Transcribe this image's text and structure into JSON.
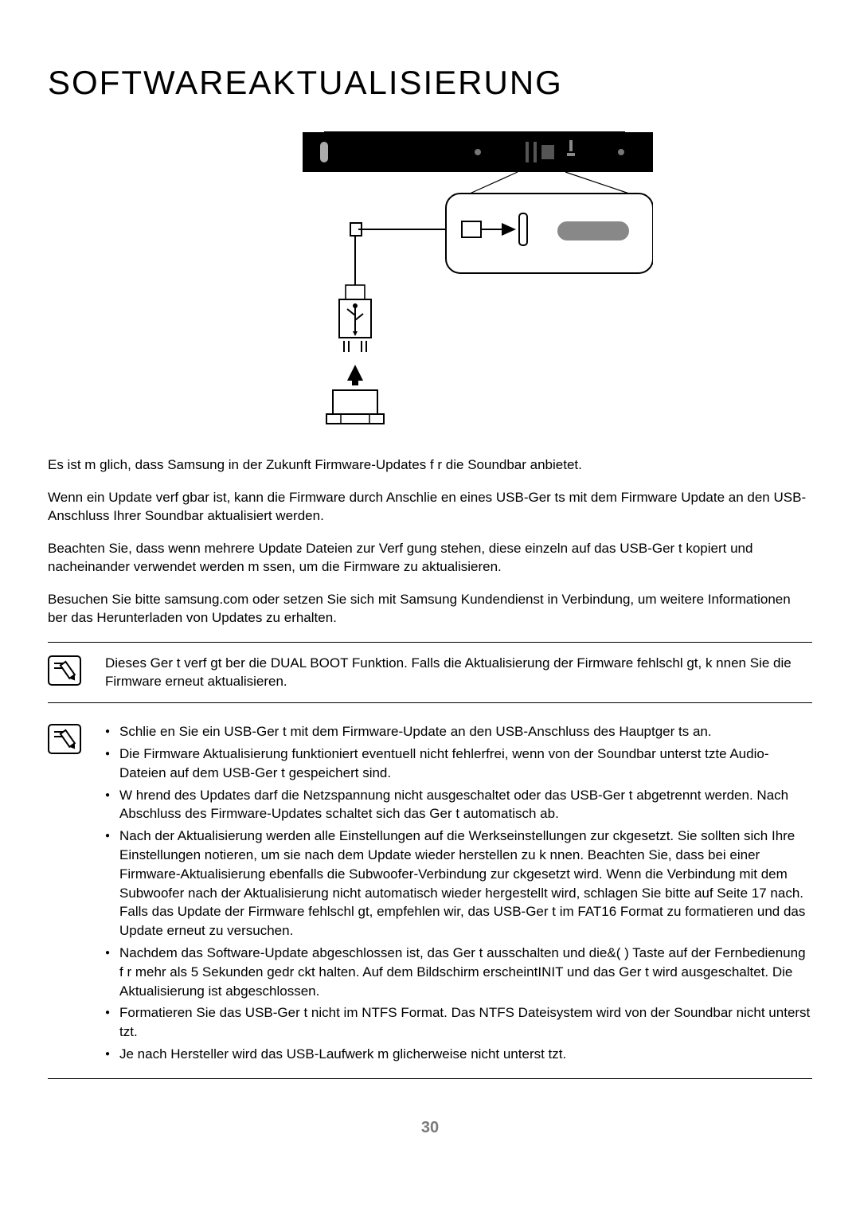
{
  "title": "SOFTWAREAKTUALISIERUNG",
  "paragraphs": {
    "p1": "Es ist m glich, dass Samsung in der Zukunft Firmware-Updates f r die Soundbar anbietet.",
    "p2": "Wenn ein Update verf gbar ist, kann die Firmware durch Anschlie en eines USB-Ger ts mit dem Firmware Update an den USB-Anschluss Ihrer Soundbar aktualisiert werden.",
    "p3": "Beachten Sie, dass wenn mehrere Update Dateien zur Verf gung stehen, diese einzeln auf das USB-Ger t kopiert und nacheinander verwendet werden m ssen, um die Firmware zu aktualisieren.",
    "p4": "Besuchen Sie bitte samsung.com oder setzen Sie sich mit Samsung Kundendienst in Verbindung, um weitere Informationen  ber das Herunterladen von Updates zu erhalten."
  },
  "note1": {
    "text": "Dieses Ger t verf gt  ber die DUAL BOOT Funktion. Falls die Aktualisierung der Firmware fehlschl gt, k nnen Sie die Firmware erneut aktualisieren."
  },
  "note2": {
    "items": [
      "Schlie en Sie ein USB-Ger t mit dem Firmware-Update an den USB-Anschluss des Hauptger ts an.",
      "Die Firmware Aktualisierung funktioniert eventuell nicht fehlerfrei, wenn von der Soundbar unterst tzte Audio-Dateien auf dem USB-Ger t gespeichert sind.",
      "W hrend des Updates darf die Netzspannung nicht ausgeschaltet oder das USB-Ger t abgetrennt werden. Nach Abschluss des Firmware-Updates schaltet sich das Ger t automatisch ab.",
      "Nach der Aktualisierung werden alle Einstellungen auf die Werkseinstellungen zur ckgesetzt. Sie sollten sich Ihre Einstellungen notieren, um sie nach dem Update wieder herstellen zu k nnen. Beachten Sie, dass bei einer Firmware-Aktualisierung ebenfalls die Subwoofer-Verbindung zur ckgesetzt wird. Wenn die Verbindung mit dem Subwoofer nach der Aktualisierung nicht automatisch wieder hergestellt wird, schlagen Sie bitte auf Seite 17 nach. Falls das Update der Firmware fehlschl gt, empfehlen wir, das USB-Ger t im FAT16 Format zu formatieren und das Update erneut zu versuchen.",
      "Nachdem das Software-Update abgeschlossen ist, das Ger t ausschalten und die&( ) Taste auf der Fernbedienung f r mehr als 5 Sekunden gedr ckt halten. Auf dem Bildschirm erscheintINIT  und das Ger t wird ausgeschaltet. Die Aktualisierung ist abgeschlossen.",
      "Formatieren Sie das USB-Ger t nicht im NTFS Format. Das NTFS Dateisystem wird von der Soundbar nicht unterst tzt.",
      "Je nach Hersteller wird das USB-Laufwerk m glicherweise nicht unterst tzt."
    ]
  },
  "pageNumber": "30",
  "styles": {
    "title_fontsize": 42,
    "body_fontsize": 17,
    "text_color": "#000000",
    "background_color": "#ffffff",
    "pagenum_color": "#7a7a7a",
    "border_color": "#000000"
  },
  "diagram": {
    "type": "technical-illustration",
    "description": "Soundbar with USB connection zoom and USB stick",
    "soundbar_color": "#000000",
    "zoom_box_stroke": "#000000",
    "usb_stick_stroke": "#000000"
  }
}
